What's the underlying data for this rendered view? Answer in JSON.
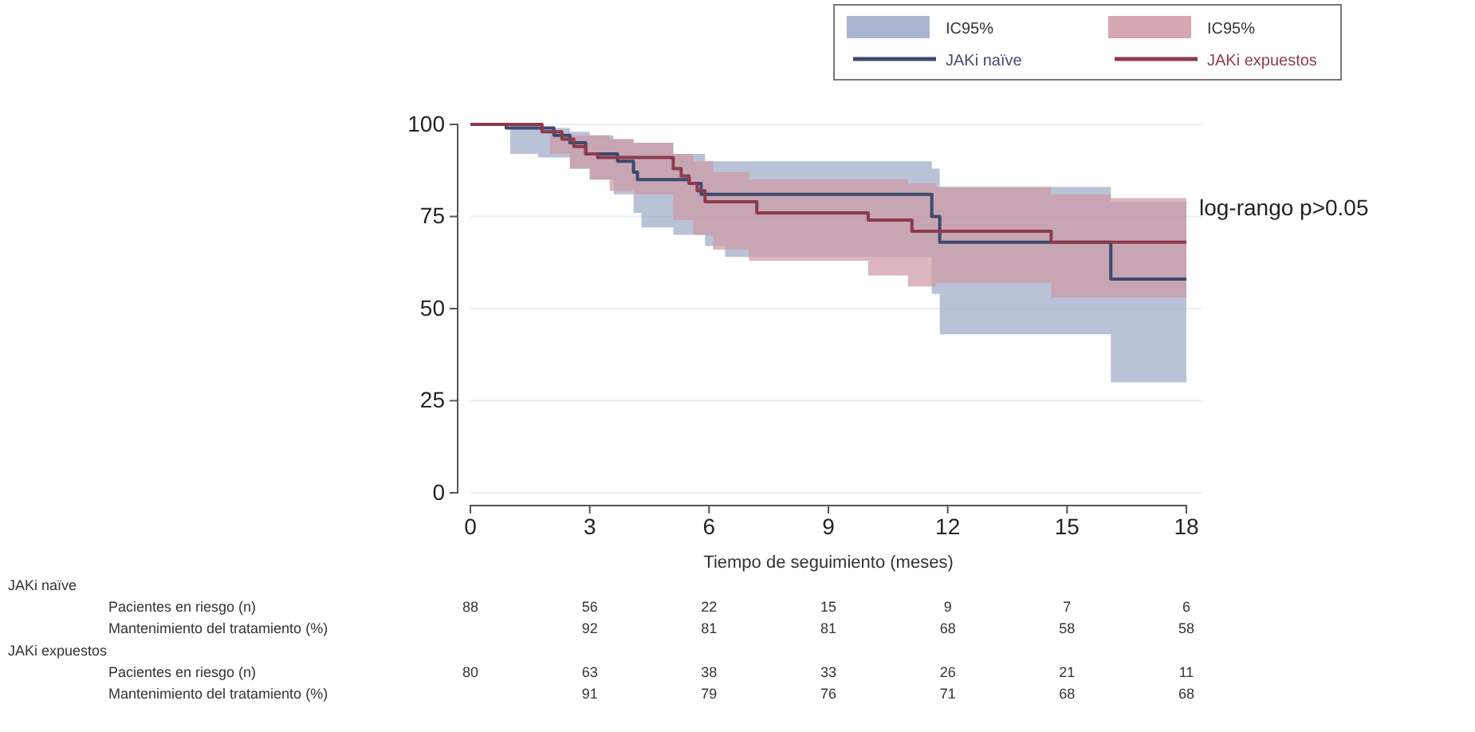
{
  "chart_data": {
    "type": "step",
    "xlabel": "Tiempo de seguimiento (meses)",
    "xlim": [
      0,
      18
    ],
    "xticks": [
      0,
      3,
      6,
      9,
      12,
      15,
      18
    ],
    "ylim": [
      0,
      100
    ],
    "yticks": [
      0,
      25,
      50,
      75,
      100
    ],
    "grid": "y",
    "legend": "top right",
    "series": [
      {
        "name": "JAKi naïve",
        "color": "#3d4a6e",
        "x": [
          0,
          0.9,
          1,
          1.7,
          2.1,
          2.5,
          2.9,
          3,
          3.6,
          3.7,
          4.1,
          4.2,
          4.3,
          5.1,
          5.5,
          5.8,
          5.9,
          6.4,
          11.6,
          11.8,
          16.1,
          18
        ],
        "values": [
          100,
          99,
          99,
          99,
          97,
          95,
          92,
          92,
          92,
          90,
          87,
          85,
          85,
          85,
          84,
          81,
          81,
          81,
          75,
          68,
          58,
          58
        ],
        "lower": [
          100,
          100,
          92,
          91,
          91,
          88,
          88,
          85,
          81,
          81,
          76,
          76,
          72,
          70,
          70,
          70,
          67,
          64,
          54,
          43,
          30,
          30
        ],
        "upper": [
          100,
          100,
          100,
          99,
          99,
          98,
          98,
          97,
          96,
          96,
          95,
          95,
          95,
          92,
          92,
          92,
          90,
          90,
          88,
          83,
          79,
          79
        ]
      },
      {
        "name": "JAKi expuestos",
        "color": "#8c3b4c",
        "x": [
          0,
          1.8,
          2,
          2.3,
          2.5,
          2.6,
          2.9,
          3,
          3.2,
          3.5,
          4.1,
          5.1,
          5.3,
          5.5,
          5.6,
          5.7,
          5.9,
          6.1,
          7,
          7.2,
          10,
          11,
          11.1,
          11.7,
          14.6,
          16.1,
          18
        ],
        "values": [
          100,
          98,
          98,
          96,
          96,
          94,
          92,
          92,
          91,
          91,
          91,
          88,
          86,
          84,
          84,
          82,
          79,
          79,
          79,
          76,
          74,
          74,
          71,
          71,
          68,
          68,
          68
        ],
        "lower": [
          100,
          100,
          92,
          92,
          88,
          88,
          88,
          85,
          85,
          82,
          81,
          74,
          74,
          74,
          70,
          70,
          70,
          66,
          63,
          63,
          59,
          56,
          56,
          57,
          53,
          53,
          53
        ],
        "upper": [
          100,
          100,
          97,
          97,
          97,
          97,
          97,
          97,
          97,
          96,
          95,
          92,
          92,
          92,
          90,
          90,
          90,
          87,
          85,
          85,
          85,
          84,
          84,
          83,
          81,
          80,
          80
        ]
      }
    ],
    "annotations": [
      "log-rango p>0.05",
      "IC95%",
      "IC95%",
      "JAKi naïve",
      "Pacientes en riesgo (n)",
      "88",
      "56",
      "22",
      "15",
      "9",
      "7",
      "6",
      "Mantenimiento del tratamiento (%)",
      "92",
      "81",
      "81",
      "68",
      "58",
      "58",
      "JAKi expuestos",
      "Pacientes en riesgo (n)",
      "80",
      "63",
      "38",
      "33",
      "26",
      "21",
      "11",
      "Mantenimiento del tratamiento (%)",
      "91",
      "79",
      "76",
      "71",
      "68",
      "68"
    ]
  }
}
